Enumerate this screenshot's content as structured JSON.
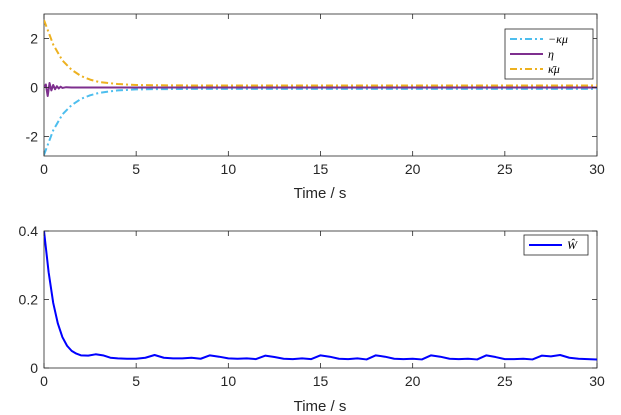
{
  "chart_data": [
    {
      "type": "line",
      "xlabel": "Time / s",
      "ylabel": "",
      "xlim": [
        0,
        30
      ],
      "ylim": [
        -2.8,
        3.0
      ],
      "xticks": [
        0,
        5,
        10,
        15,
        20,
        25,
        30
      ],
      "yticks": [
        -2,
        0,
        2
      ],
      "legend_position": "top-right",
      "series": [
        {
          "name": "−κμ",
          "color": "#4DBEEE",
          "style": "dash-dot",
          "x": [
            0,
            0.5,
            1,
            1.5,
            2,
            2.5,
            3,
            4,
            5,
            6,
            8,
            10,
            15,
            20,
            25,
            30
          ],
          "y": [
            -2.75,
            -1.75,
            -1.1,
            -0.72,
            -0.47,
            -0.32,
            -0.22,
            -0.12,
            -0.08,
            -0.07,
            -0.06,
            -0.06,
            -0.06,
            -0.06,
            -0.06,
            -0.06
          ]
        },
        {
          "name": "η",
          "color": "#7E2F8E",
          "style": "solid",
          "x": [
            0,
            0.1,
            0.2,
            0.3,
            0.4,
            0.5,
            0.6,
            0.7,
            0.8,
            0.9,
            1.0,
            1.2,
            1.5,
            2,
            3,
            5,
            10,
            20,
            30
          ],
          "y": [
            0,
            0.12,
            -0.35,
            0.18,
            -0.12,
            0.1,
            -0.07,
            0.05,
            -0.04,
            0.03,
            -0.02,
            0.01,
            0,
            0,
            0,
            0,
            0,
            0,
            0
          ]
        },
        {
          "name": "κ̄μ",
          "color": "#EDB120",
          "style": "dash-dot",
          "x": [
            0,
            0.5,
            1,
            1.5,
            2,
            2.5,
            3,
            4,
            5,
            6,
            8,
            10,
            15,
            20,
            25,
            30
          ],
          "y": [
            2.75,
            1.75,
            1.1,
            0.72,
            0.47,
            0.32,
            0.22,
            0.14,
            0.1,
            0.09,
            0.08,
            0.08,
            0.08,
            0.08,
            0.08,
            0.08
          ]
        }
      ]
    },
    {
      "type": "line",
      "xlabel": "Time / s",
      "ylabel": "",
      "xlim": [
        0,
        30
      ],
      "ylim": [
        0,
        0.4
      ],
      "xticks": [
        0,
        5,
        10,
        15,
        20,
        25,
        30
      ],
      "yticks": [
        0,
        0.2,
        0.4
      ],
      "legend_position": "top-right",
      "series": [
        {
          "name": "Ŵ",
          "color": "#0000FF",
          "style": "solid",
          "x": [
            0,
            0.25,
            0.5,
            0.75,
            1,
            1.25,
            1.5,
            1.75,
            2,
            2.4,
            2.8,
            3.2,
            3.6,
            4,
            4.5,
            5,
            5.5,
            6,
            6.5,
            7,
            7.5,
            8,
            8.5,
            9,
            9.5,
            10,
            10.5,
            11,
            11.5,
            12,
            12.5,
            13,
            13.5,
            14,
            14.5,
            15,
            15.5,
            16,
            16.5,
            17,
            17.5,
            18,
            18.5,
            19,
            19.5,
            20,
            20.5,
            21,
            21.5,
            22,
            22.5,
            23,
            23.5,
            24,
            24.5,
            25,
            25.5,
            26,
            26.5,
            27,
            27.5,
            28,
            28.5,
            29,
            29.5,
            30
          ],
          "y": [
            0.4,
            0.28,
            0.19,
            0.13,
            0.09,
            0.065,
            0.05,
            0.042,
            0.037,
            0.036,
            0.04,
            0.037,
            0.03,
            0.028,
            0.027,
            0.027,
            0.03,
            0.038,
            0.03,
            0.028,
            0.028,
            0.03,
            0.027,
            0.037,
            0.033,
            0.028,
            0.027,
            0.028,
            0.026,
            0.036,
            0.032,
            0.027,
            0.026,
            0.028,
            0.026,
            0.037,
            0.033,
            0.027,
            0.026,
            0.028,
            0.025,
            0.037,
            0.033,
            0.027,
            0.026,
            0.027,
            0.025,
            0.037,
            0.033,
            0.027,
            0.026,
            0.027,
            0.025,
            0.037,
            0.032,
            0.026,
            0.026,
            0.027,
            0.025,
            0.036,
            0.034,
            0.038,
            0.03,
            0.027,
            0.026,
            0.025
          ]
        }
      ]
    }
  ]
}
